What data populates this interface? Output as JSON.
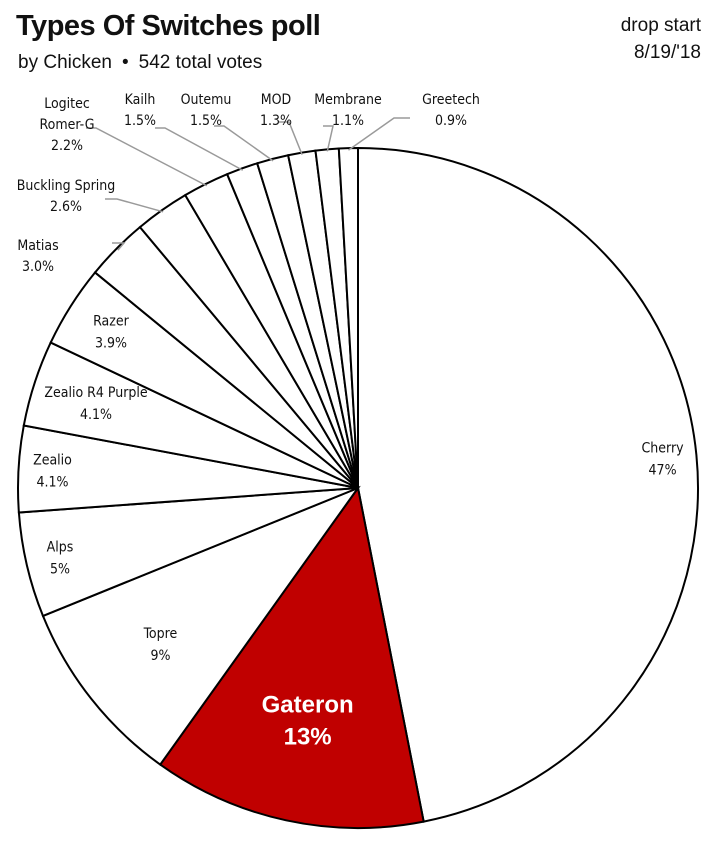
{
  "header": {
    "title": "Types Of Switches poll",
    "author": "by Chicken",
    "separator": "•",
    "total_votes": "542 total votes",
    "drop_label": "drop start",
    "drop_date": "8/19/'18"
  },
  "chart_data": {
    "type": "pie",
    "title": "Types Of Switches poll",
    "start_angle": "12 o'clock, clockwise",
    "slices": [
      {
        "label": "Cherry",
        "value": 47,
        "display": "47%",
        "color": "#ffffff"
      },
      {
        "label": "Gateron",
        "value": 13,
        "display": "13%",
        "color": "#c00000"
      },
      {
        "label": "Topre",
        "value": 9,
        "display": "9%",
        "color": "#ffffff"
      },
      {
        "label": "Alps",
        "value": 5,
        "display": "5%",
        "color": "#ffffff"
      },
      {
        "label": "Zealio",
        "value": 4.1,
        "display": "4.1%",
        "color": "#ffffff"
      },
      {
        "label": "Zealio R4 Purple",
        "value": 4.1,
        "display": "4.1%",
        "color": "#ffffff"
      },
      {
        "label": "Razer",
        "value": 3.9,
        "display": "3.9%",
        "color": "#ffffff"
      },
      {
        "label": "Matias",
        "value": 3.0,
        "display": "3.0%",
        "color": "#ffffff"
      },
      {
        "label": "Buckling Spring",
        "value": 2.6,
        "display": "2.6%",
        "color": "#ffffff"
      },
      {
        "label": "Logitec Romer-G",
        "value": 2.2,
        "display": "2.2%",
        "color": "#ffffff"
      },
      {
        "label": "Kailh",
        "value": 1.5,
        "display": "1.5%",
        "color": "#ffffff"
      },
      {
        "label": "Outemu",
        "value": 1.5,
        "display": "1.5%",
        "color": "#ffffff"
      },
      {
        "label": "MOD",
        "value": 1.3,
        "display": "1.3%",
        "color": "#ffffff"
      },
      {
        "label": "Membrane",
        "value": 1.1,
        "display": "1.1%",
        "color": "#ffffff"
      },
      {
        "label": "Greetech",
        "value": 0.9,
        "display": "0.9%",
        "color": "#ffffff"
      }
    ]
  }
}
